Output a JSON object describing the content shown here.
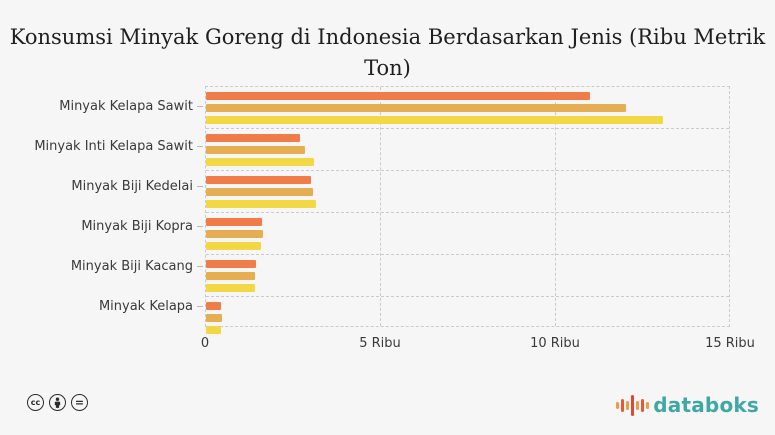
{
  "title": {
    "lines": [
      "Konsumsi Minyak Goreng di Indonesia Berdasarkan Jenis (Ribu Metrik",
      "Ton)"
    ],
    "full": "Konsumsi Minyak Goreng di Indonesia Berdasarkan Jenis (Ribu Metrik Ton)"
  },
  "chart_data": {
    "type": "bar",
    "orientation": "horizontal",
    "title": "Konsumsi Minyak Goreng di Indonesia Berdasarkan Jenis (Ribu Metrik Ton)",
    "unit": "Ribu Metrik Ton",
    "categories": [
      "Minyak Kelapa Sawit",
      "Minyak Inti Kelapa Sawit",
      "Minyak Biji Kedelai",
      "Minyak Biji Kopra",
      "Minyak Biji Kacang",
      "Minyak Kelapa"
    ],
    "series": [
      {
        "name": "series-top",
        "color": "#F07C4A",
        "values": [
          11000,
          2700,
          3000,
          1600,
          1430,
          430
        ]
      },
      {
        "name": "series-middle",
        "color": "#E6AE52",
        "values": [
          12050,
          2850,
          3070,
          1640,
          1400,
          450
        ]
      },
      {
        "name": "series-bottom",
        "color": "#F2D844",
        "values": [
          13100,
          3100,
          3150,
          1570,
          1400,
          430
        ]
      }
    ],
    "x_axis": {
      "max": 15000,
      "ticks": [
        {
          "value": 0,
          "label": "0"
        },
        {
          "value": 5000,
          "label": "5 Ribu"
        },
        {
          "value": 10000,
          "label": "10 Ribu"
        },
        {
          "value": 15000,
          "label": "15 Ribu"
        }
      ]
    },
    "grid": "dashed",
    "legend_position": "none"
  },
  "footer": {
    "license_icons": [
      {
        "name": "cc",
        "glyph": "cc"
      },
      {
        "name": "by",
        "glyph": "person"
      },
      {
        "name": "nd",
        "glyph": "="
      }
    ],
    "brand": {
      "text": "databoks",
      "color": "#3FA8A4"
    }
  },
  "colors": {
    "background": "#f6f6f6",
    "grid": "#cbcbcb",
    "text": "#3a3a3a",
    "title_text": "#1f1f1f",
    "logo_bars": [
      "#F09A43",
      "#E4593B",
      "#F09A43",
      "#DC4A32",
      "#F09A43",
      "#E4593B",
      "#F09A43"
    ]
  }
}
